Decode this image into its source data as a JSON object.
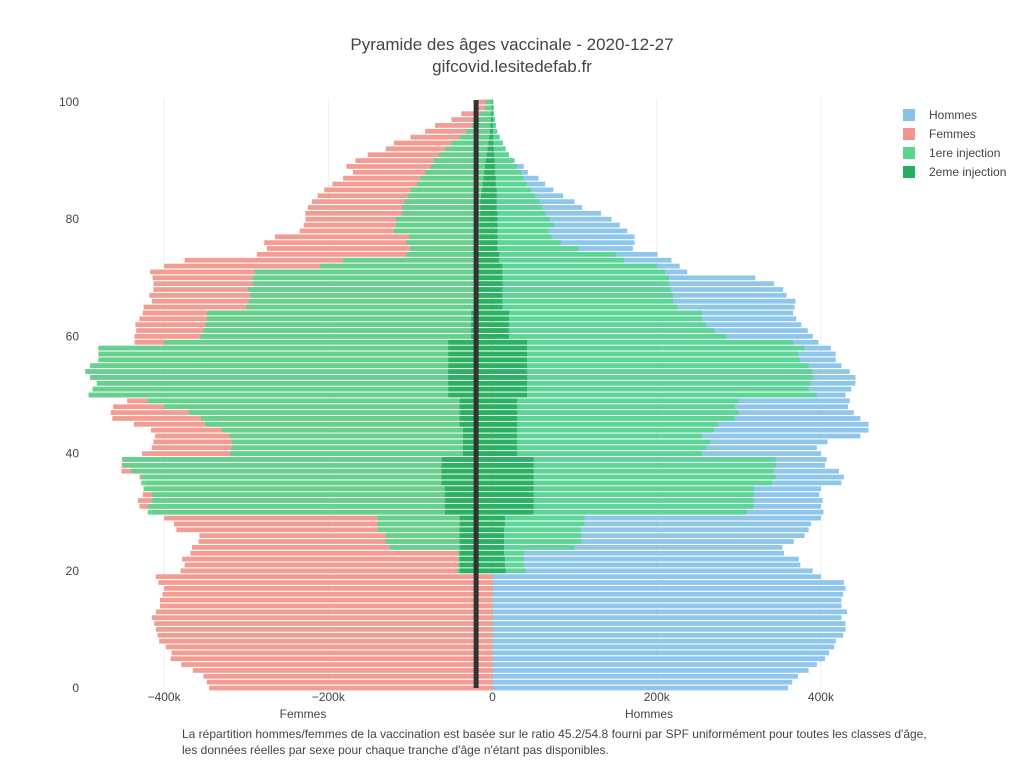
{
  "chart_data": {
    "type": "bar",
    "orientation": "horizontal",
    "barmode": "overlay",
    "title": "Pyramide des âges vaccinale - 2020-12-27",
    "subtitle": "gifcovid.lesitedefab.fr",
    "xlabel_left": "Femmes",
    "xlabel_right": "Hommes",
    "xlim": [
      -500000,
      450000
    ],
    "ylim": [
      0,
      100
    ],
    "x_ticks": [
      {
        "value": -400000,
        "label": "−400k"
      },
      {
        "value": -200000,
        "label": "−200k"
      },
      {
        "value": 0,
        "label": "0"
      },
      {
        "value": 200000,
        "label": "200k"
      },
      {
        "value": 400000,
        "label": "400k"
      }
    ],
    "y_ticks": [
      {
        "value": 0,
        "label": "0"
      },
      {
        "value": 20,
        "label": "20"
      },
      {
        "value": 40,
        "label": "40"
      },
      {
        "value": 60,
        "label": "60"
      },
      {
        "value": 80,
        "label": "80"
      },
      {
        "value": 100,
        "label": "100"
      }
    ],
    "marker_line_value": -20000,
    "legend": [
      {
        "name": "Hommes",
        "color": "#85c1e9"
      },
      {
        "name": "Femmes",
        "color": "#f1948a"
      },
      {
        "name": "1ere injection",
        "color": "#58d68d"
      },
      {
        "name": "2eme injection",
        "color": "#27ae60"
      }
    ],
    "ages": [
      0,
      1,
      2,
      3,
      4,
      5,
      6,
      7,
      8,
      9,
      10,
      11,
      12,
      13,
      14,
      15,
      16,
      17,
      18,
      19,
      20,
      21,
      22,
      23,
      24,
      25,
      26,
      27,
      28,
      29,
      30,
      31,
      32,
      33,
      34,
      35,
      36,
      37,
      38,
      39,
      40,
      41,
      42,
      43,
      44,
      45,
      46,
      47,
      48,
      49,
      50,
      51,
      52,
      53,
      54,
      55,
      56,
      57,
      58,
      59,
      60,
      61,
      62,
      63,
      64,
      65,
      66,
      67,
      68,
      69,
      70,
      71,
      72,
      73,
      74,
      75,
      76,
      77,
      78,
      79,
      80,
      81,
      82,
      83,
      84,
      85,
      86,
      87,
      88,
      89,
      90,
      91,
      92,
      93,
      94,
      95,
      96,
      97,
      98,
      99,
      100
    ],
    "series": [
      {
        "name": "Hommes",
        "values": [
          360000,
          365000,
          372000,
          385000,
          395000,
          405000,
          410000,
          416000,
          418000,
          427000,
          430000,
          430000,
          425000,
          432000,
          425000,
          425000,
          427000,
          430000,
          428000,
          400000,
          390000,
          375000,
          373000,
          355000,
          353000,
          367000,
          380000,
          385000,
          388000,
          400000,
          403000,
          400000,
          402000,
          398000,
          400000,
          425000,
          428000,
          422000,
          405000,
          407000,
          400000,
          395000,
          408000,
          448000,
          458000,
          458000,
          448000,
          440000,
          433000,
          435000,
          430000,
          437000,
          442000,
          442000,
          435000,
          425000,
          418000,
          418000,
          412000,
          397000,
          390000,
          384000,
          376000,
          370000,
          366000,
          368000,
          369000,
          358000,
          354000,
          343000,
          320000,
          237000,
          228000,
          218000,
          201000,
          171000,
          173000,
          173000,
          164000,
          155000,
          145000,
          132000,
          109000,
          100000,
          86000,
          74000,
          64000,
          56000,
          43000,
          38000,
          27000,
          20000,
          16000,
          13000,
          9000,
          6000,
          4000,
          3000,
          2000,
          1500,
          1000
        ]
      },
      {
        "name": "Femmes",
        "values": [
          345000,
          348000,
          352000,
          365000,
          379000,
          392000,
          391000,
          398000,
          406000,
          408000,
          410000,
          412000,
          415000,
          410000,
          405000,
          405000,
          402000,
          400000,
          407000,
          410000,
          380000,
          375000,
          378000,
          368000,
          366000,
          358000,
          357000,
          385000,
          388000,
          400000,
          415000,
          430000,
          432000,
          426000,
          425000,
          422000,
          430000,
          452000,
          452000,
          451000,
          427000,
          415000,
          413000,
          411000,
          416000,
          437000,
          463000,
          465000,
          462000,
          445000,
          492000,
          487000,
          482000,
          490000,
          496000,
          490000,
          480000,
          480000,
          480000,
          436000,
          436000,
          434000,
          435000,
          430000,
          426000,
          425000,
          415000,
          418000,
          413000,
          413000,
          414000,
          417000,
          400000,
          375000,
          287000,
          275000,
          278000,
          265000,
          235000,
          230000,
          228000,
          228000,
          225000,
          220000,
          213000,
          205000,
          195000,
          182000,
          170000,
          178000,
          167000,
          152000,
          130000,
          120000,
          100000,
          82000,
          70000,
          50000,
          38000,
          22000,
          18000
        ]
      },
      {
        "name": "1ere injection",
        "values": [
          0,
          0,
          0,
          0,
          0,
          0,
          0,
          0,
          0,
          0,
          0,
          0,
          0,
          0,
          0,
          0,
          0,
          0,
          0,
          0,
          40000,
          38000,
          38000,
          38000,
          100000,
          108000,
          108000,
          108000,
          112000,
          112000,
          310000,
          318000,
          318000,
          318000,
          318000,
          340000,
          345000,
          342000,
          345000,
          345000,
          255000,
          260000,
          265000,
          255000,
          270000,
          275000,
          295000,
          300000,
          295000,
          300000,
          395000,
          385000,
          387000,
          390000,
          390000,
          385000,
          375000,
          372000,
          380000,
          366000,
          285000,
          270000,
          260000,
          255000,
          255000,
          225000,
          220000,
          220000,
          217000,
          215000,
          215000,
          210000,
          200000,
          160000,
          150000,
          105000,
          83000,
          72000,
          68000,
          75000,
          70000,
          64000,
          60000,
          57000,
          52000,
          47000,
          42000,
          38000,
          35000,
          30000,
          26000,
          20000,
          16000,
          12000,
          8000,
          5000,
          4000,
          3000,
          2000,
          1500,
          1000
        ]
      },
      {
        "name": "2eme injection",
        "values": [
          0,
          0,
          0,
          0,
          0,
          0,
          0,
          0,
          0,
          0,
          0,
          0,
          0,
          0,
          0,
          0,
          0,
          0,
          0,
          0,
          16000,
          15000,
          15000,
          14000,
          14000,
          14000,
          14000,
          14000,
          15000,
          15000,
          50000,
          50000,
          50000,
          50000,
          50000,
          50000,
          50000,
          50000,
          50000,
          50000,
          30000,
          30000,
          30000,
          30000,
          30000,
          30000,
          30000,
          30000,
          30000,
          30000,
          42000,
          42000,
          42000,
          42000,
          42000,
          42000,
          42000,
          42000,
          42000,
          42000,
          20000,
          20000,
          20000,
          20000,
          20000,
          12000,
          12000,
          12000,
          12000,
          12000,
          12000,
          12000,
          12000,
          8000,
          8000,
          6000,
          6000,
          6000,
          6000,
          6000,
          6000,
          6000,
          5000,
          5000,
          5000,
          5000,
          4000,
          4000,
          3000,
          3000,
          2500,
          2000,
          1500,
          1000,
          800,
          500,
          400,
          300,
          200,
          100,
          100
        ]
      },
      {
        "name": "1ere injection (femmes)",
        "values": [
          0,
          0,
          0,
          0,
          0,
          0,
          0,
          0,
          0,
          0,
          0,
          0,
          0,
          0,
          0,
          0,
          0,
          0,
          0,
          0,
          43000,
          42000,
          42000,
          42000,
          125000,
          130000,
          130000,
          140000,
          140000,
          140000,
          420000,
          420000,
          415000,
          415000,
          425000,
          428000,
          428000,
          440000,
          450000,
          451000,
          320000,
          318000,
          317000,
          320000,
          330000,
          350000,
          355000,
          370000,
          400000,
          420000,
          492000,
          487000,
          482000,
          490000,
          496000,
          490000,
          480000,
          480000,
          480000,
          400000,
          356000,
          352000,
          350000,
          348000,
          348000,
          300000,
          297000,
          295000,
          298000,
          292000,
          292000,
          290000,
          210000,
          182000,
          105000,
          100000,
          105000,
          102000,
          120000,
          118000,
          118000,
          110000,
          110000,
          108000,
          103000,
          100000,
          92000,
          88000,
          82000,
          75000,
          72000,
          65000,
          58000,
          50000,
          40000,
          32000,
          25000,
          20000,
          15000,
          10000,
          8000
        ]
      },
      {
        "name": "2eme injection (femmes)",
        "values": [
          0,
          0,
          0,
          0,
          0,
          0,
          0,
          0,
          0,
          0,
          0,
          0,
          0,
          0,
          0,
          0,
          0,
          0,
          0,
          0,
          40000,
          40000,
          40000,
          40000,
          40000,
          40000,
          40000,
          40000,
          40000,
          40000,
          58000,
          58000,
          58000,
          58000,
          58000,
          62000,
          62000,
          62000,
          62000,
          62000,
          36000,
          36000,
          36000,
          36000,
          36000,
          40000,
          40000,
          40000,
          40000,
          40000,
          54000,
          54000,
          54000,
          54000,
          54000,
          54000,
          54000,
          54000,
          54000,
          54000,
          26000,
          26000,
          26000,
          26000,
          26000,
          22000,
          22000,
          22000,
          22000,
          22000,
          22000,
          22000,
          22000,
          17000,
          17000,
          16000,
          16000,
          16000,
          16000,
          16000,
          16000,
          15000,
          15000,
          15000,
          14000,
          13000,
          12000,
          11000,
          10000,
          9000,
          8000,
          7000,
          6000,
          5000,
          4000,
          3000,
          2500,
          2000,
          1500,
          1000,
          800
        ]
      }
    ],
    "annotation": [
      "La répartition hommes/femmes de la vaccination est basée sur le ratio 45.2/54.8 fourni par SPF uniformément pour toutes les classes d'âge,",
      "les données réelles par sexe pour chaque tranche d'âge n'étant pas disponibles."
    ]
  }
}
